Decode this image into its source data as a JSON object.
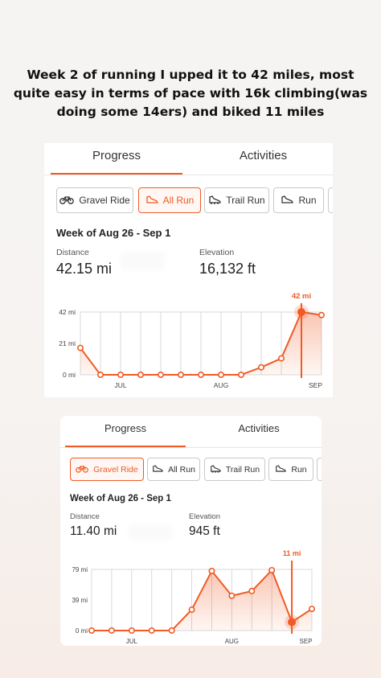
{
  "caption": "Week 2 of running I upped it to 42 miles, most quite easy in terms of pace with 16k climbing(was doing some 14ers) and biked 11 miles",
  "colors": {
    "accent": "#f15a24",
    "fill": "#fbd5c3",
    "grid": "#d9d9d9"
  },
  "cards": [
    {
      "tabs": {
        "progress": "Progress",
        "activities": "Activities",
        "selected": "Progress"
      },
      "filters": [
        {
          "label": "Gravel Ride",
          "icon": "bike-icon",
          "active": false
        },
        {
          "label": "All Run",
          "icon": "shoe-icon",
          "active": true
        },
        {
          "label": "Trail Run",
          "icon": "trail-shoe-icon",
          "active": false
        },
        {
          "label": "Run",
          "icon": "shoe-icon",
          "active": false
        }
      ],
      "week_title": "Week of Aug 26 - Sep 1",
      "distance": {
        "label": "Distance",
        "value": "42.15 mi"
      },
      "elevation": {
        "label": "Elevation",
        "value": "16,132 ft"
      },
      "chart_data": {
        "type": "line",
        "y_ticks": [
          "42 mi",
          "21 mi",
          "0 mi"
        ],
        "ylim": [
          0,
          42
        ],
        "x_labels": [
          "JUL",
          "AUG",
          "SEP"
        ],
        "values": [
          18,
          0,
          0,
          0,
          0,
          0,
          0,
          0,
          0,
          5,
          11,
          42,
          40
        ],
        "highlight_index": 11,
        "highlight_label": "42 mi",
        "grid": true
      }
    },
    {
      "tabs": {
        "progress": "Progress",
        "activities": "Activities",
        "selected": "Progress"
      },
      "filters": [
        {
          "label": "Gravel Ride",
          "icon": "bike-icon",
          "active": true
        },
        {
          "label": "All Run",
          "icon": "shoe-icon",
          "active": false
        },
        {
          "label": "Trail Run",
          "icon": "trail-shoe-icon",
          "active": false
        },
        {
          "label": "Run",
          "icon": "shoe-icon",
          "active": false
        }
      ],
      "week_title": "Week of Aug 26 - Sep 1",
      "distance": {
        "label": "Distance",
        "value": "11.40 mi"
      },
      "elevation": {
        "label": "Elevation",
        "value": "945 ft"
      },
      "chart_data": {
        "type": "line",
        "y_ticks": [
          "79 mi",
          "39 mi",
          "0 mi"
        ],
        "ylim": [
          0,
          79
        ],
        "x_labels": [
          "JUL",
          "AUG",
          "SEP"
        ],
        "values": [
          0,
          0,
          0,
          0,
          0,
          27,
          77,
          45,
          51,
          78,
          11,
          28
        ],
        "highlight_index": 10,
        "highlight_label": "11 mi",
        "grid": true
      }
    }
  ]
}
